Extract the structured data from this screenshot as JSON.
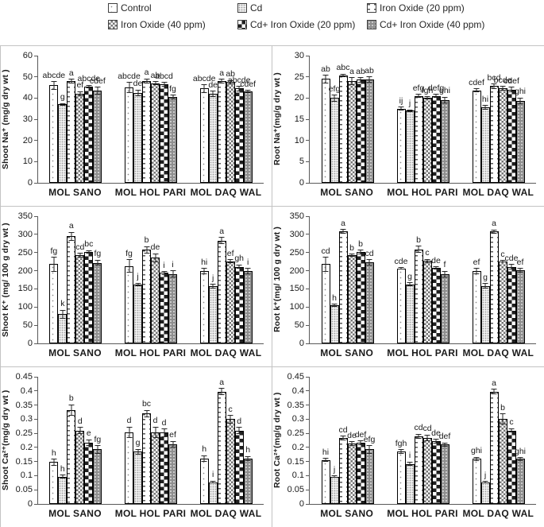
{
  "legend": {
    "items": [
      {
        "label": "Control",
        "pattern": "control"
      },
      {
        "label": "Cd",
        "pattern": "cd"
      },
      {
        "label": "Iron Oxide (20 ppm)",
        "pattern": "io20"
      },
      {
        "label": "Iron Oxide (40 ppm)",
        "pattern": "io40"
      },
      {
        "label": "Cd+ Iron Oxide (20 ppm)",
        "pattern": "cdio20"
      },
      {
        "label": "Cd+ Iron Oxide (40 ppm)",
        "pattern": "cdio40"
      }
    ]
  },
  "chart_data": [
    {
      "id": "shoot-na",
      "type": "bar",
      "ylabel": "Shoot Na⁺ (mg/g dry wt )",
      "xlabel": "",
      "ylim": [
        0,
        60
      ],
      "ystep": 10,
      "grid": false,
      "legend_position": "top",
      "categories": [
        "MOL SANO",
        "MOL HOL PARI",
        "MOL DAQ WAL"
      ],
      "series": [
        {
          "name": "Control",
          "pattern": "control",
          "values": [
            46,
            45,
            44.5
          ],
          "errors": [
            2,
            2.5,
            2
          ],
          "letters": [
            "abcde",
            "abcde",
            "abcde"
          ]
        },
        {
          "name": "Cd",
          "pattern": "cd",
          "values": [
            37,
            42.5,
            42
          ],
          "errors": [
            0.6,
            1.5,
            1.5
          ],
          "letters": [
            "g",
            "de",
            "de"
          ]
        },
        {
          "name": "Iron Oxide (20 ppm)",
          "pattern": "io20",
          "values": [
            48,
            48,
            48
          ],
          "errors": [
            1,
            1.2,
            1
          ],
          "letters": [
            "a",
            "a",
            "a"
          ]
        },
        {
          "name": "Iron Oxide (40 ppm)",
          "pattern": "io40",
          "values": [
            42,
            47,
            47.5
          ],
          "errors": [
            1.2,
            1,
            1
          ],
          "letters": [
            "ef",
            "ab",
            "ab"
          ]
        },
        {
          "name": "Cd+ Iron Oxide (20 ppm)",
          "pattern": "cdio20",
          "values": [
            45.5,
            46.5,
            44.5
          ],
          "errors": [
            0.8,
            1,
            1.2
          ],
          "letters": [
            "abcde",
            "abcd",
            "abcde"
          ]
        },
        {
          "name": "Cd+ Iron Oxide (40 ppm)",
          "pattern": "cdio40",
          "values": [
            43.5,
            40.5,
            43
          ],
          "errors": [
            1.8,
            1,
            0.8
          ],
          "letters": [
            "cdef",
            "fg",
            "cdef"
          ]
        }
      ]
    },
    {
      "id": "root-na",
      "type": "bar",
      "ylabel": "Root Na⁺(mg/g dry wt )",
      "xlabel": "",
      "ylim": [
        0,
        30
      ],
      "ystep": 5,
      "grid": false,
      "legend_position": "top",
      "categories": [
        "MOL SANO",
        "MOL HOL PARI",
        "MOL DAQ WAL"
      ],
      "series": [
        {
          "name": "Control",
          "pattern": "control",
          "values": [
            24.5,
            17.5,
            21.8
          ],
          "errors": [
            1,
            0.5,
            0.5
          ],
          "letters": [
            "ab",
            "ij",
            "cdef"
          ]
        },
        {
          "name": "Cd",
          "pattern": "cd",
          "values": [
            20,
            17,
            17.8
          ],
          "errors": [
            0.8,
            0.3,
            0.5
          ],
          "letters": [
            "efg",
            "j",
            "hi"
          ]
        },
        {
          "name": "Iron Oxide (20 ppm)",
          "pattern": "io20",
          "values": [
            25.3,
            20.5,
            22.8
          ],
          "errors": [
            0.4,
            0.5,
            0.6
          ],
          "letters": [
            "abc",
            "efg",
            "bcd"
          ]
        },
        {
          "name": "Iron Oxide (40 ppm)",
          "pattern": "io40",
          "values": [
            24,
            20,
            22.3
          ],
          "errors": [
            0.9,
            0.4,
            0.5
          ],
          "letters": [
            "a",
            "fgh",
            "bcde"
          ]
        },
        {
          "name": "Cd+ Iron Oxide (20 ppm)",
          "pattern": "cdio20",
          "values": [
            24.3,
            20.5,
            22
          ],
          "errors": [
            0.6,
            0.5,
            0.6
          ],
          "letters": [
            "ab",
            "defg",
            "cdef"
          ]
        },
        {
          "name": "Cd+ Iron Oxide (40 ppm)",
          "pattern": "cdio40",
          "values": [
            24.4,
            19.5,
            19.3
          ],
          "errors": [
            0.7,
            0.8,
            0.8
          ],
          "letters": [
            "ab",
            "ghi",
            "ghi"
          ]
        }
      ]
    },
    {
      "id": "shoot-k",
      "type": "bar",
      "ylabel": "Shoot K⁺ (mg/ 100 g dry wt )",
      "xlabel": "",
      "ylim": [
        0,
        350
      ],
      "ystep": 50,
      "grid": false,
      "legend_position": "top",
      "categories": [
        "MOL SANO",
        "MOL HOL PARI",
        "MOL DAQ WAL"
      ],
      "series": [
        {
          "name": "Control",
          "pattern": "control",
          "values": [
            218,
            213,
            199
          ],
          "errors": [
            20,
            18,
            8
          ],
          "letters": [
            "fg",
            "fg",
            "hi"
          ]
        },
        {
          "name": "Cd",
          "pattern": "cd",
          "values": [
            80,
            162,
            158
          ],
          "errors": [
            12,
            5,
            6
          ],
          "letters": [
            "k",
            "j",
            "j"
          ]
        },
        {
          "name": "Iron Oxide (20 ppm)",
          "pattern": "io20",
          "values": [
            295,
            258,
            283
          ],
          "errors": [
            12,
            10,
            10
          ],
          "letters": [
            "a",
            "b",
            "a"
          ]
        },
        {
          "name": "Iron Oxide (40 ppm)",
          "pattern": "io40",
          "values": [
            243,
            236,
            226
          ],
          "errors": [
            6,
            12,
            5
          ],
          "letters": [
            "cd",
            "de",
            "ef"
          ]
        },
        {
          "name": "Cd+ Iron Oxide (20 ppm)",
          "pattern": "cdio20",
          "values": [
            252,
            194,
            211
          ],
          "errors": [
            5,
            5,
            6
          ],
          "letters": [
            "bc",
            "i",
            "gh"
          ]
        },
        {
          "name": "Cd+ Iron Oxide (40 ppm)",
          "pattern": "cdio40",
          "values": [
            222,
            191,
            199
          ],
          "errors": [
            8,
            10,
            8
          ],
          "letters": [
            "fg",
            "i",
            "i"
          ]
        }
      ]
    },
    {
      "id": "root-k",
      "type": "bar",
      "ylabel": "Root k⁺(mg/ 100 g dry wt )",
      "xlabel": "",
      "ylim": [
        0,
        350
      ],
      "ystep": 50,
      "grid": false,
      "legend_position": "top",
      "categories": [
        "MOL SANO",
        "MOL HOL PARI",
        "MOL DAQ WAL"
      ],
      "series": [
        {
          "name": "Control",
          "pattern": "control",
          "values": [
            218,
            206,
            199
          ],
          "errors": [
            20,
            3,
            8
          ],
          "letters": [
            "cd",
            "cde",
            "ef"
          ]
        },
        {
          "name": "Cd",
          "pattern": "cd",
          "values": [
            105,
            163,
            158
          ],
          "errors": [
            4,
            5,
            8
          ],
          "letters": [
            "h",
            "g",
            "g"
          ]
        },
        {
          "name": "Iron Oxide (20 ppm)",
          "pattern": "io20",
          "values": [
            308,
            259,
            308
          ],
          "errors": [
            6,
            10,
            5
          ],
          "letters": [
            "a",
            "b",
            "a"
          ]
        },
        {
          "name": "Iron Oxide (40 ppm)",
          "pattern": "io40",
          "values": [
            243,
            227,
            226
          ],
          "errors": [
            4,
            6,
            3
          ],
          "letters": [
            "b",
            "c",
            "c"
          ]
        },
        {
          "name": "Cd+ Iron Oxide (20 ppm)",
          "pattern": "cdio20",
          "values": [
            252,
            208,
            211
          ],
          "errors": [
            6,
            4,
            7
          ],
          "letters": [
            "b",
            "de",
            "cde"
          ]
        },
        {
          "name": "Cd+ Iron Oxide (40 ppm)",
          "pattern": "cdio40",
          "values": [
            223,
            191,
            201
          ],
          "errors": [
            8,
            9,
            6
          ],
          "letters": [
            "cd",
            "f",
            "ef"
          ]
        }
      ]
    },
    {
      "id": "shoot-ca",
      "type": "bar",
      "ylabel": "Shoot Ca²⁺(mg/g dry wt )",
      "xlabel": "",
      "ylim": [
        0,
        0.45
      ],
      "ystep": 0.05,
      "grid": false,
      "legend_position": "top",
      "categories": [
        "MOL SANO",
        "MOL HOL PARI",
        "MOL DAQ WAL"
      ],
      "series": [
        {
          "name": "Control",
          "pattern": "control",
          "values": [
            0.148,
            0.253,
            0.16
          ],
          "errors": [
            0.012,
            0.02,
            0.012
          ],
          "letters": [
            "h",
            "d",
            "h"
          ]
        },
        {
          "name": "Cd",
          "pattern": "cd",
          "values": [
            0.097,
            0.185,
            0.077
          ],
          "errors": [
            0.006,
            0.01,
            0.005
          ],
          "letters": [
            "h",
            "g",
            "i"
          ]
        },
        {
          "name": "Iron Oxide (20 ppm)",
          "pattern": "io20",
          "values": [
            0.333,
            0.32,
            0.398
          ],
          "errors": [
            0.02,
            0.012,
            0.012
          ],
          "letters": [
            "b",
            "bc",
            "a"
          ]
        },
        {
          "name": "Iron Oxide (40 ppm)",
          "pattern": "io40",
          "values": [
            0.26,
            0.253,
            0.3
          ],
          "errors": [
            0.012,
            0.02,
            0.015
          ],
          "letters": [
            "d",
            "d",
            "c"
          ]
        },
        {
          "name": "Cd+ Iron Oxide (20 ppm)",
          "pattern": "cdio20",
          "values": [
            0.217,
            0.252,
            0.26
          ],
          "errors": [
            0.012,
            0.015,
            0.012
          ],
          "letters": [
            "e",
            "d",
            "d"
          ]
        },
        {
          "name": "Cd+ Iron Oxide (40 ppm)",
          "pattern": "cdio40",
          "values": [
            0.193,
            0.211,
            0.161
          ],
          "errors": [
            0.015,
            0.012,
            0.008
          ],
          "letters": [
            "fg",
            "ef",
            "h"
          ]
        }
      ]
    },
    {
      "id": "root-ca",
      "type": "bar",
      "ylabel": "Root Ca²⁺(mg/g dry wt )",
      "xlabel": "",
      "ylim": [
        0,
        0.45
      ],
      "ystep": 0.05,
      "grid": false,
      "legend_position": "top",
      "categories": [
        "MOL SANO",
        "MOL HOL PARI",
        "MOL DAQ WAL"
      ],
      "series": [
        {
          "name": "Control",
          "pattern": "control",
          "values": [
            0.156,
            0.186,
            0.159
          ],
          "errors": [
            0.006,
            0.008,
            0.008
          ],
          "letters": [
            "hi",
            "fgh",
            "ghi"
          ]
        },
        {
          "name": "Cd",
          "pattern": "cd",
          "values": [
            0.097,
            0.142,
            0.077
          ],
          "errors": [
            0.004,
            0.008,
            0.004
          ],
          "letters": [
            "j",
            "i",
            "j"
          ]
        },
        {
          "name": "Iron Oxide (20 ppm)",
          "pattern": "io20",
          "values": [
            0.233,
            0.24,
            0.397
          ],
          "errors": [
            0.008,
            0.008,
            0.01
          ],
          "letters": [
            "cd",
            "cd",
            "a"
          ]
        },
        {
          "name": "Iron Oxide (40 ppm)",
          "pattern": "io40",
          "values": [
            0.214,
            0.233,
            0.3
          ],
          "errors": [
            0.008,
            0.012,
            0.02
          ],
          "letters": [
            "de",
            "cd",
            "b"
          ]
        },
        {
          "name": "Cd+ Iron Oxide (20 ppm)",
          "pattern": "cdio20",
          "values": [
            0.216,
            0.222,
            0.26
          ],
          "errors": [
            0.008,
            0.008,
            0.008
          ],
          "letters": [
            "def",
            "de",
            "c"
          ]
        },
        {
          "name": "Cd+ Iron Oxide (40 ppm)",
          "pattern": "cdio40",
          "values": [
            0.193,
            0.21,
            0.159
          ],
          "errors": [
            0.015,
            0.008,
            0.006
          ],
          "letters": [
            "efg",
            "def",
            "ghi"
          ]
        }
      ]
    }
  ]
}
